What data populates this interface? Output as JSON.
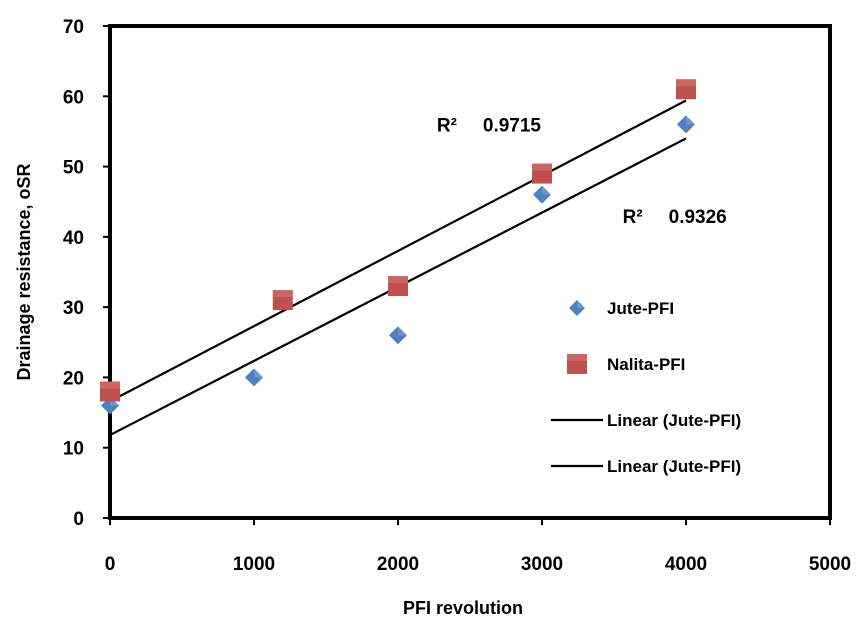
{
  "chart_data": {
    "type": "scatter",
    "xlabel": "PFI revolution",
    "ylabel": "Drainage resistance, oSR",
    "xlim": [
      0,
      5000
    ],
    "ylim": [
      0,
      70
    ],
    "x_ticks": [
      "0",
      "1000",
      "2000",
      "3000",
      "4000",
      "5000"
    ],
    "y_ticks": [
      "0",
      "10",
      "20",
      "30",
      "40",
      "50",
      "60",
      "70"
    ],
    "grid": false,
    "legend_position": "right",
    "series": [
      {
        "name": "Jute-PFI",
        "marker": "diamond",
        "color": "#4f81bd",
        "points": [
          {
            "x": 0,
            "y": 16
          },
          {
            "x": 1000,
            "y": 20
          },
          {
            "x": 2000,
            "y": 26
          },
          {
            "x": 3000,
            "y": 46
          },
          {
            "x": 4000,
            "y": 56
          }
        ]
      },
      {
        "name": "Nalita-PFI",
        "marker": "square",
        "color": "#c0504d",
        "points": [
          {
            "x": 0,
            "y": 18
          },
          {
            "x": 1200,
            "y": 31
          },
          {
            "x": 2000,
            "y": 33
          },
          {
            "x": 3000,
            "y": 49
          },
          {
            "x": 4000,
            "y": 61
          }
        ]
      }
    ],
    "trendlines": [
      {
        "name": "Linear (Jute-PFI)",
        "x_range": [
          0,
          4000
        ],
        "y_start": 11.8,
        "y_end": 54.0,
        "color": "#000000"
      },
      {
        "name": "Linear (Jute-PFI)",
        "x_range": [
          0,
          4000
        ],
        "y_start": 16.6,
        "y_end": 59.4,
        "color": "#000000"
      }
    ],
    "annotations": [
      {
        "label": "R²",
        "value": "0.9715",
        "x": 2270,
        "y": 55
      },
      {
        "label": "R²",
        "value": "0.9326",
        "x": 3560,
        "y": 42
      }
    ]
  }
}
